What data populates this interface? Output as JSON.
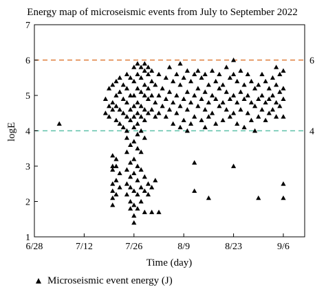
{
  "chart_data": {
    "type": "scatter",
    "title": "Energy map of microseismic events from July to September 2022",
    "xlabel": "Time (day)",
    "ylabel": "logE",
    "x_tick_labels": [
      "6/28",
      "7/12",
      "7/26",
      "8/9",
      "8/23",
      "9/6"
    ],
    "x_tick_dates": [
      "2022-06-28",
      "2022-07-12",
      "2022-07-26",
      "2022-08-09",
      "2022-08-23",
      "2022-09-06"
    ],
    "xlim": [
      "2022-06-28",
      "2022-09-12"
    ],
    "ylim": [
      1,
      7
    ],
    "y_ticks": [
      1,
      2,
      3,
      4,
      5,
      6,
      7
    ],
    "reference_lines": [
      {
        "y": 6,
        "color": "#e07b39",
        "style": "dashed",
        "label": "6"
      },
      {
        "y": 4,
        "color": "#5cc0a8",
        "style": "dashed",
        "label": "4"
      }
    ],
    "series": [
      {
        "name": "Microseismic event energy (J)",
        "marker": "triangle",
        "color": "#000000",
        "points": [
          [
            "2022-07-05",
            4.2
          ],
          [
            "2022-07-18",
            4.5
          ],
          [
            "2022-07-18",
            4.9
          ],
          [
            "2022-07-19",
            5.2
          ],
          [
            "2022-07-19",
            4.7
          ],
          [
            "2022-07-19",
            4.4
          ],
          [
            "2022-07-20",
            5.3
          ],
          [
            "2022-07-20",
            4.8
          ],
          [
            "2022-07-20",
            4.6
          ],
          [
            "2022-07-20",
            3.3
          ],
          [
            "2022-07-20",
            3.0
          ],
          [
            "2022-07-20",
            2.9
          ],
          [
            "2022-07-20",
            2.5
          ],
          [
            "2022-07-20",
            2.3
          ],
          [
            "2022-07-20",
            2.1
          ],
          [
            "2022-07-20",
            1.9
          ],
          [
            "2022-07-21",
            5.4
          ],
          [
            "2022-07-21",
            5.0
          ],
          [
            "2022-07-21",
            4.7
          ],
          [
            "2022-07-21",
            4.3
          ],
          [
            "2022-07-21",
            3.2
          ],
          [
            "2022-07-21",
            3.0
          ],
          [
            "2022-07-21",
            2.6
          ],
          [
            "2022-07-21",
            2.2
          ],
          [
            "2022-07-22",
            5.5
          ],
          [
            "2022-07-22",
            5.1
          ],
          [
            "2022-07-22",
            4.6
          ],
          [
            "2022-07-22",
            4.2
          ],
          [
            "2022-07-22",
            2.8
          ],
          [
            "2022-07-22",
            2.4
          ],
          [
            "2022-07-23",
            5.3
          ],
          [
            "2022-07-23",
            4.9
          ],
          [
            "2022-07-23",
            4.5
          ],
          [
            "2022-07-23",
            4.1
          ],
          [
            "2022-07-24",
            5.6
          ],
          [
            "2022-07-24",
            5.2
          ],
          [
            "2022-07-24",
            4.8
          ],
          [
            "2022-07-24",
            4.4
          ],
          [
            "2022-07-24",
            4.0
          ],
          [
            "2022-07-24",
            3.8
          ],
          [
            "2022-07-24",
            3.4
          ],
          [
            "2022-07-24",
            2.9
          ],
          [
            "2022-07-24",
            2.5
          ],
          [
            "2022-07-24",
            2.2
          ],
          [
            "2022-07-25",
            5.5
          ],
          [
            "2022-07-25",
            5.0
          ],
          [
            "2022-07-25",
            4.6
          ],
          [
            "2022-07-25",
            4.3
          ],
          [
            "2022-07-25",
            3.6
          ],
          [
            "2022-07-25",
            3.1
          ],
          [
            "2022-07-25",
            2.7
          ],
          [
            "2022-07-25",
            2.4
          ],
          [
            "2022-07-25",
            2.0
          ],
          [
            "2022-07-25",
            1.8
          ],
          [
            "2022-07-26",
            5.8
          ],
          [
            "2022-07-26",
            5.4
          ],
          [
            "2022-07-26",
            5.0
          ],
          [
            "2022-07-26",
            4.7
          ],
          [
            "2022-07-26",
            4.4
          ],
          [
            "2022-07-26",
            4.1
          ],
          [
            "2022-07-26",
            3.7
          ],
          [
            "2022-07-26",
            3.2
          ],
          [
            "2022-07-26",
            2.8
          ],
          [
            "2022-07-26",
            2.3
          ],
          [
            "2022-07-26",
            1.9
          ],
          [
            "2022-07-26",
            1.6
          ],
          [
            "2022-07-26",
            1.4
          ],
          [
            "2022-07-27",
            5.9
          ],
          [
            "2022-07-27",
            5.6
          ],
          [
            "2022-07-27",
            5.2
          ],
          [
            "2022-07-27",
            4.8
          ],
          [
            "2022-07-27",
            4.5
          ],
          [
            "2022-07-27",
            4.2
          ],
          [
            "2022-07-27",
            3.9
          ],
          [
            "2022-07-27",
            3.5
          ],
          [
            "2022-07-27",
            3.0
          ],
          [
            "2022-07-27",
            2.6
          ],
          [
            "2022-07-27",
            2.2
          ],
          [
            "2022-07-27",
            1.8
          ],
          [
            "2022-07-28",
            5.8
          ],
          [
            "2022-07-28",
            5.5
          ],
          [
            "2022-07-28",
            5.1
          ],
          [
            "2022-07-28",
            4.7
          ],
          [
            "2022-07-28",
            4.4
          ],
          [
            "2022-07-28",
            4.0
          ],
          [
            "2022-07-28",
            3.4
          ],
          [
            "2022-07-28",
            2.9
          ],
          [
            "2022-07-28",
            2.4
          ],
          [
            "2022-07-28",
            2.0
          ],
          [
            "2022-07-29",
            5.9
          ],
          [
            "2022-07-29",
            5.7
          ],
          [
            "2022-07-29",
            5.3
          ],
          [
            "2022-07-29",
            5.0
          ],
          [
            "2022-07-29",
            4.6
          ],
          [
            "2022-07-29",
            4.3
          ],
          [
            "2022-07-29",
            3.8
          ],
          [
            "2022-07-29",
            2.7
          ],
          [
            "2022-07-29",
            2.3
          ],
          [
            "2022-07-29",
            1.7
          ],
          [
            "2022-07-30",
            5.8
          ],
          [
            "2022-07-30",
            5.6
          ],
          [
            "2022-07-30",
            5.2
          ],
          [
            "2022-07-30",
            4.9
          ],
          [
            "2022-07-30",
            4.5
          ],
          [
            "2022-07-30",
            2.5
          ],
          [
            "2022-07-30",
            2.2
          ],
          [
            "2022-07-31",
            5.7
          ],
          [
            "2022-07-31",
            5.4
          ],
          [
            "2022-07-31",
            5.0
          ],
          [
            "2022-07-31",
            4.6
          ],
          [
            "2022-07-31",
            2.4
          ],
          [
            "2022-07-31",
            1.7
          ],
          [
            "2022-08-01",
            5.3
          ],
          [
            "2022-08-01",
            4.8
          ],
          [
            "2022-08-01",
            4.4
          ],
          [
            "2022-08-01",
            2.6
          ],
          [
            "2022-08-02",
            5.6
          ],
          [
            "2022-08-02",
            5.0
          ],
          [
            "2022-08-02",
            4.5
          ],
          [
            "2022-08-02",
            1.7
          ],
          [
            "2022-08-03",
            5.2
          ],
          [
            "2022-08-03",
            4.7
          ],
          [
            "2022-08-04",
            5.5
          ],
          [
            "2022-08-04",
            4.9
          ],
          [
            "2022-08-04",
            4.4
          ],
          [
            "2022-08-05",
            5.8
          ],
          [
            "2022-08-05",
            5.1
          ],
          [
            "2022-08-05",
            4.6
          ],
          [
            "2022-08-06",
            5.4
          ],
          [
            "2022-08-06",
            4.8
          ],
          [
            "2022-08-06",
            4.2
          ],
          [
            "2022-08-07",
            5.6
          ],
          [
            "2022-08-07",
            5.0
          ],
          [
            "2022-08-07",
            4.5
          ],
          [
            "2022-08-08",
            5.9
          ],
          [
            "2022-08-08",
            5.3
          ],
          [
            "2022-08-08",
            4.7
          ],
          [
            "2022-08-08",
            4.1
          ],
          [
            "2022-08-09",
            5.5
          ],
          [
            "2022-08-09",
            4.9
          ],
          [
            "2022-08-09",
            4.3
          ],
          [
            "2022-08-10",
            5.7
          ],
          [
            "2022-08-10",
            5.1
          ],
          [
            "2022-08-10",
            4.6
          ],
          [
            "2022-08-10",
            4.0
          ],
          [
            "2022-08-11",
            5.4
          ],
          [
            "2022-08-11",
            4.8
          ],
          [
            "2022-08-11",
            4.2
          ],
          [
            "2022-08-12",
            5.6
          ],
          [
            "2022-08-12",
            5.0
          ],
          [
            "2022-08-12",
            4.4
          ],
          [
            "2022-08-12",
            3.1
          ],
          [
            "2022-08-12",
            2.3
          ],
          [
            "2022-08-13",
            5.7
          ],
          [
            "2022-08-13",
            5.2
          ],
          [
            "2022-08-13",
            4.7
          ],
          [
            "2022-08-14",
            5.5
          ],
          [
            "2022-08-14",
            4.9
          ],
          [
            "2022-08-14",
            4.3
          ],
          [
            "2022-08-15",
            5.6
          ],
          [
            "2022-08-15",
            5.1
          ],
          [
            "2022-08-15",
            4.6
          ],
          [
            "2022-08-15",
            4.1
          ],
          [
            "2022-08-16",
            5.3
          ],
          [
            "2022-08-16",
            4.8
          ],
          [
            "2022-08-16",
            4.4
          ],
          [
            "2022-08-16",
            2.1
          ],
          [
            "2022-08-17",
            5.7
          ],
          [
            "2022-08-17",
            5.0
          ],
          [
            "2022-08-17",
            4.5
          ],
          [
            "2022-08-18",
            5.4
          ],
          [
            "2022-08-18",
            4.9
          ],
          [
            "2022-08-18",
            4.2
          ],
          [
            "2022-08-19",
            5.6
          ],
          [
            "2022-08-19",
            5.2
          ],
          [
            "2022-08-19",
            4.7
          ],
          [
            "2022-08-20",
            5.3
          ],
          [
            "2022-08-20",
            4.8
          ],
          [
            "2022-08-20",
            4.3
          ],
          [
            "2022-08-21",
            5.8
          ],
          [
            "2022-08-21",
            5.1
          ],
          [
            "2022-08-21",
            4.6
          ],
          [
            "2022-08-22",
            5.5
          ],
          [
            "2022-08-22",
            4.9
          ],
          [
            "2022-08-22",
            4.4
          ],
          [
            "2022-08-23",
            6.0
          ],
          [
            "2022-08-23",
            5.6
          ],
          [
            "2022-08-23",
            5.0
          ],
          [
            "2022-08-23",
            4.5
          ],
          [
            "2022-08-23",
            3.0
          ],
          [
            "2022-08-24",
            5.4
          ],
          [
            "2022-08-24",
            4.8
          ],
          [
            "2022-08-24",
            4.2
          ],
          [
            "2022-08-25",
            5.7
          ],
          [
            "2022-08-25",
            5.1
          ],
          [
            "2022-08-25",
            4.6
          ],
          [
            "2022-08-26",
            5.3
          ],
          [
            "2022-08-26",
            4.9
          ],
          [
            "2022-08-26",
            4.1
          ],
          [
            "2022-08-27",
            5.6
          ],
          [
            "2022-08-27",
            5.0
          ],
          [
            "2022-08-27",
            4.5
          ],
          [
            "2022-08-28",
            5.4
          ],
          [
            "2022-08-28",
            4.8
          ],
          [
            "2022-08-28",
            4.3
          ],
          [
            "2022-08-29",
            5.2
          ],
          [
            "2022-08-29",
            4.7
          ],
          [
            "2022-08-29",
            4.0
          ],
          [
            "2022-08-30",
            5.3
          ],
          [
            "2022-08-30",
            4.9
          ],
          [
            "2022-08-30",
            4.4
          ],
          [
            "2022-08-30",
            2.1
          ],
          [
            "2022-08-31",
            5.6
          ],
          [
            "2022-08-31",
            5.0
          ],
          [
            "2022-08-31",
            4.6
          ],
          [
            "2022-09-01",
            5.4
          ],
          [
            "2022-09-01",
            4.8
          ],
          [
            "2022-09-01",
            4.3
          ],
          [
            "2022-09-02",
            5.2
          ],
          [
            "2022-09-02",
            4.9
          ],
          [
            "2022-09-02",
            4.5
          ],
          [
            "2022-09-03",
            5.5
          ],
          [
            "2022-09-03",
            5.0
          ],
          [
            "2022-09-03",
            4.6
          ],
          [
            "2022-09-04",
            5.8
          ],
          [
            "2022-09-04",
            5.3
          ],
          [
            "2022-09-04",
            4.8
          ],
          [
            "2022-09-04",
            4.4
          ],
          [
            "2022-09-05",
            5.6
          ],
          [
            "2022-09-05",
            5.1
          ],
          [
            "2022-09-05",
            4.7
          ],
          [
            "2022-09-06",
            5.7
          ],
          [
            "2022-09-06",
            5.2
          ],
          [
            "2022-09-06",
            4.9
          ],
          [
            "2022-09-06",
            4.4
          ],
          [
            "2022-09-06",
            2.5
          ],
          [
            "2022-09-06",
            2.1
          ]
        ]
      }
    ]
  }
}
